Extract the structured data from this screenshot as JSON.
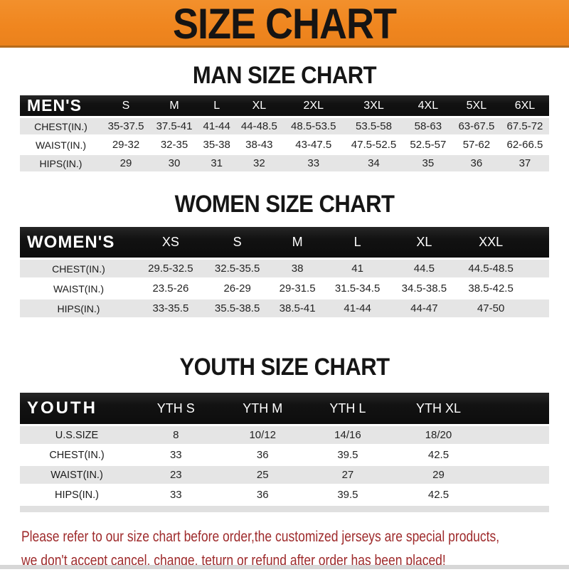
{
  "banner": {
    "title": "SIZE CHART",
    "bg_color": "#F0861F",
    "text_color": "#161413"
  },
  "sections": [
    {
      "heading": "MAN SIZE CHART",
      "table": {
        "header_label": "MEN'S",
        "columns": [
          "S",
          "M",
          "L",
          "XL",
          "2XL",
          "3XL",
          "4XL",
          "5XL",
          "6XL"
        ],
        "rows": [
          {
            "label": "CHEST(IN.)",
            "values": [
              "35-37.5",
              "37.5-41",
              "41-44",
              "44-48.5",
              "48.5-53.5",
              "53.5-58",
              "58-63",
              "63-67.5",
              "67.5-72"
            ]
          },
          {
            "label": "WAIST(IN.)",
            "values": [
              "29-32",
              "32-35",
              "35-38",
              "38-43",
              "43-47.5",
              "47.5-52.5",
              "52.5-57",
              "57-62",
              "62-66.5"
            ]
          },
          {
            "label": "HIPS(IN.)",
            "values": [
              "29",
              "30",
              "31",
              "32",
              "33",
              "34",
              "35",
              "36",
              "37"
            ]
          }
        ]
      }
    },
    {
      "heading": "WOMEN SIZE CHART",
      "table": {
        "header_label": "WOMEN'S",
        "columns": [
          "XS",
          "S",
          "M",
          "L",
          "XL",
          "XXL"
        ],
        "rows": [
          {
            "label": "CHEST(IN.)",
            "values": [
              "29.5-32.5",
              "32.5-35.5",
              "38",
              "41",
              "44.5",
              "44.5-48.5"
            ]
          },
          {
            "label": "WAIST(IN.)",
            "values": [
              "23.5-26",
              "26-29",
              "29-31.5",
              "31.5-34.5",
              "34.5-38.5",
              "38.5-42.5"
            ]
          },
          {
            "label": "HIPS(IN.)",
            "values": [
              "33-35.5",
              "35.5-38.5",
              "38.5-41",
              "41-44",
              "44-47",
              "47-50"
            ]
          }
        ]
      }
    },
    {
      "heading": "YOUTH SIZE CHART",
      "table": {
        "header_label": "YOUTH",
        "columns": [
          "YTH S",
          "YTH M",
          "YTH L",
          "YTH XL"
        ],
        "rows": [
          {
            "label": "U.S.SIZE",
            "values": [
              "8",
              "10/12",
              "14/16",
              "18/20"
            ]
          },
          {
            "label": "CHEST(IN.)",
            "values": [
              "33",
              "36",
              "39.5",
              "42.5"
            ]
          },
          {
            "label": "WAIST(IN.)",
            "values": [
              "23",
              "25",
              "27",
              "29"
            ]
          },
          {
            "label": "HIPS(IN.)",
            "values": [
              "33",
              "36",
              "39.5",
              "42.5"
            ]
          }
        ]
      }
    }
  ],
  "footer": {
    "line1": "Please refer to our size chart before order,the customized jerseys are special products,",
    "line2": "we don't accept cancel, change, teturn or refund after order has been placed!",
    "text_color": "#9E2A2B"
  },
  "colors": {
    "banner_orange": "#F0861F",
    "header_band_black": "#141414",
    "row_gray": "#E5E5E5",
    "notice_red": "#9E2A2B"
  }
}
